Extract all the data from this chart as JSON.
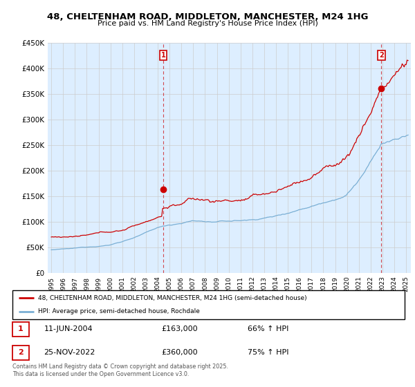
{
  "title": "48, CHELTENHAM ROAD, MIDDLETON, MANCHESTER, M24 1HG",
  "subtitle": "Price paid vs. HM Land Registry's House Price Index (HPI)",
  "legend_line1": "48, CHELTENHAM ROAD, MIDDLETON, MANCHESTER, M24 1HG (semi-detached house)",
  "legend_line2": "HPI: Average price, semi-detached house, Rochdale",
  "red_color": "#cc0000",
  "blue_color": "#7aafd4",
  "plot_bg_color": "#ddeeff",
  "marker1_year": 2004.46,
  "marker2_year": 2022.9,
  "marker1_value": 163000,
  "marker2_value": 360000,
  "annotation1": {
    "label": "1",
    "date": "11-JUN-2004",
    "price": "£163,000",
    "hpi": "66% ↑ HPI"
  },
  "annotation2": {
    "label": "2",
    "date": "25-NOV-2022",
    "price": "£360,000",
    "hpi": "75% ↑ HPI"
  },
  "footnote": "Contains HM Land Registry data © Crown copyright and database right 2025.\nThis data is licensed under the Open Government Licence v3.0.",
  "ylim": [
    0,
    450000
  ],
  "yticks": [
    0,
    50000,
    100000,
    150000,
    200000,
    250000,
    300000,
    350000,
    400000,
    450000
  ],
  "ytick_labels": [
    "£0",
    "£50K",
    "£100K",
    "£150K",
    "£200K",
    "£250K",
    "£300K",
    "£350K",
    "£400K",
    "£450K"
  ],
  "background_color": "#ffffff",
  "grid_color": "#cccccc",
  "xstart": 1995,
  "xend": 2025
}
